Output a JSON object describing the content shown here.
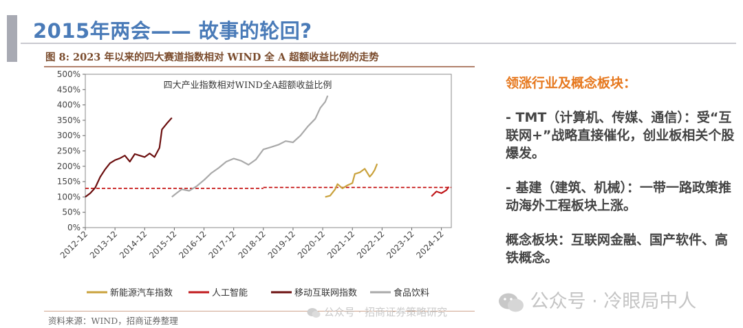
{
  "header": {
    "title": "2015年两会—— 故事的轮回?"
  },
  "figure": {
    "title": "图 8: 2023 年以来的四大赛道指数相对 WIND 全 A 超额收益比例的走势",
    "source": "资料来源：WIND，招商证券整理"
  },
  "watermarks": {
    "small": "公众号 · 招商证券策略研究",
    "big": "公众号 · 冷眼局中人"
  },
  "panel": {
    "heading": "领涨行业及概念板块：",
    "items": [
      "- TMT（计算机、传媒、通信）：受“互联网+”战略直接催化，创业板相关个股爆发。",
      "- 基建（建筑、机械）：一带一路政策推动海外工程板块上涨。",
      "概念板块：互联网金融、国产软件、高铁概念。"
    ]
  },
  "chart_data": {
    "type": "line",
    "title": "四大产业指数相对WIND全A超额收益比例",
    "ylim": [
      0,
      500
    ],
    "yticks": [
      0,
      50,
      100,
      150,
      200,
      250,
      300,
      350,
      400,
      450,
      500
    ],
    "ytick_labels": [
      "0%",
      "50%",
      "100%",
      "150%",
      "200%",
      "250%",
      "300%",
      "350%",
      "400%",
      "450%",
      "500%"
    ],
    "xlim": [
      "2012-12",
      "2025-04"
    ],
    "xtick_labels": [
      "2012-12",
      "2013-12",
      "2014-12",
      "2015-12",
      "2016-12",
      "2017-12",
      "2018-12",
      "2019-12",
      "2020-12",
      "2021-12",
      "2022-12",
      "2023-12",
      "2024-12"
    ],
    "grid": false,
    "legend_position": "bottom",
    "reference_line": {
      "style": "dashed",
      "color": "#c00000",
      "segments": [
        {
          "x": [
            "2012-12",
            "2018-12"
          ],
          "y": 128
        },
        {
          "x": [
            "2018-12",
            "2025-04"
          ],
          "y": 131
        }
      ]
    },
    "series": [
      {
        "name": "新能源汽车指数",
        "color": "#c9a13b",
        "x": [
          "2021-01",
          "2021-03",
          "2021-05",
          "2021-06",
          "2021-08",
          "2021-10",
          "2021-12",
          "2022-01",
          "2022-03",
          "2022-05",
          "2022-07",
          "2022-08",
          "2022-09",
          "2022-10"
        ],
        "values": [
          100,
          104,
          125,
          142,
          128,
          138,
          145,
          175,
          180,
          192,
          166,
          175,
          188,
          208
        ]
      },
      {
        "name": "人工智能",
        "color": "#c0181b",
        "x": [
          "2024-08",
          "2024-10",
          "2024-12",
          "2025-02",
          "2025-03"
        ],
        "values": [
          102,
          118,
          112,
          122,
          133
        ]
      },
      {
        "name": "移动互联网指数",
        "color": "#6b0e0e",
        "x": [
          "2012-12",
          "2013-02",
          "2013-04",
          "2013-06",
          "2013-08",
          "2013-10",
          "2013-12",
          "2014-02",
          "2014-04",
          "2014-06",
          "2014-08",
          "2014-10",
          "2014-12",
          "2015-02",
          "2015-04",
          "2015-06",
          "2015-07",
          "2015-09",
          "2015-11"
        ],
        "values": [
          100,
          112,
          130,
          165,
          190,
          210,
          220,
          226,
          235,
          215,
          240,
          235,
          230,
          242,
          230,
          260,
          320,
          340,
          358
        ]
      },
      {
        "name": "食品饮料",
        "color": "#a9a9a9",
        "x": [
          "2015-11",
          "2016-01",
          "2016-03",
          "2016-06",
          "2016-09",
          "2016-12",
          "2017-03",
          "2017-06",
          "2017-09",
          "2017-12",
          "2018-03",
          "2018-06",
          "2018-09",
          "2018-12",
          "2019-03",
          "2019-06",
          "2019-09",
          "2019-12",
          "2020-03",
          "2020-06",
          "2020-09",
          "2020-11",
          "2021-01",
          "2021-02"
        ],
        "values": [
          100,
          113,
          125,
          120,
          135,
          155,
          178,
          195,
          215,
          225,
          218,
          205,
          222,
          255,
          262,
          270,
          282,
          278,
          300,
          330,
          355,
          390,
          410,
          430
        ]
      }
    ]
  }
}
